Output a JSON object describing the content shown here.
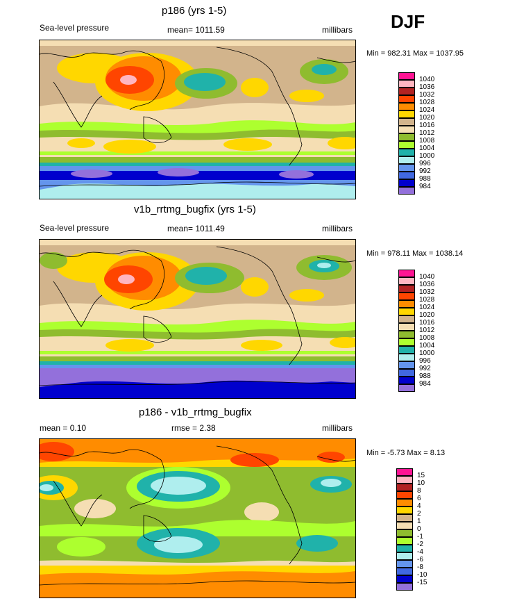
{
  "season": "DJF",
  "panels": [
    {
      "id": "p186",
      "title": "p186 (yrs 1-5)",
      "left_label": "Sea-level pressure",
      "center_label": "mean= 1011.59",
      "units": "millibars",
      "minmax": "Min = 982.31 Max = 1037.95",
      "legend": {
        "levels": [
          "1040",
          "1036",
          "1032",
          "1028",
          "1024",
          "1020",
          "1016",
          "1012",
          "1008",
          "1004",
          "1000",
          "996",
          "992",
          "988",
          "984"
        ],
        "colors": [
          "#ff1493",
          "#ffb6c1",
          "#b22222",
          "#ff4500",
          "#ff8c00",
          "#ffd700",
          "#d2b48c",
          "#f5deb3",
          "#8fbc2f",
          "#adff2f",
          "#20b2aa",
          "#afeeee",
          "#6495ed",
          "#4169e1",
          "#0000cd",
          "#9370db"
        ]
      }
    },
    {
      "id": "v1b",
      "title": "v1b_rrtmg_bugfix (yrs 1-5)",
      "left_label": "Sea-level pressure",
      "center_label": "mean= 1011.49",
      "units": "millibars",
      "minmax": "Min = 978.11 Max = 1038.14",
      "legend": {
        "levels": [
          "1040",
          "1036",
          "1032",
          "1028",
          "1024",
          "1020",
          "1016",
          "1012",
          "1008",
          "1004",
          "1000",
          "996",
          "992",
          "988",
          "984"
        ],
        "colors": [
          "#ff1493",
          "#ffb6c1",
          "#b22222",
          "#ff4500",
          "#ff8c00",
          "#ffd700",
          "#d2b48c",
          "#f5deb3",
          "#8fbc2f",
          "#adff2f",
          "#20b2aa",
          "#afeeee",
          "#6495ed",
          "#4169e1",
          "#0000cd",
          "#9370db"
        ]
      }
    },
    {
      "id": "diff",
      "title": "p186 - v1b_rrtmg_bugfix",
      "left_label": "mean =   0.10",
      "center_label": "rmse =   2.38",
      "units": "millibars",
      "minmax": "Min =  -5.73 Max =   8.13",
      "legend": {
        "levels": [
          "15",
          "10",
          "8",
          "6",
          "4",
          "2",
          "1",
          "0",
          "-1",
          "-2",
          "-4",
          "-6",
          "-8",
          "-10",
          "-15"
        ],
        "colors": [
          "#ff1493",
          "#ffb6c1",
          "#b22222",
          "#ff4500",
          "#ff8c00",
          "#ffd700",
          "#d2b48c",
          "#f5deb3",
          "#8fbc2f",
          "#adff2f",
          "#20b2aa",
          "#afeeee",
          "#6495ed",
          "#4169e1",
          "#0000cd",
          "#9370db"
        ]
      }
    }
  ]
}
